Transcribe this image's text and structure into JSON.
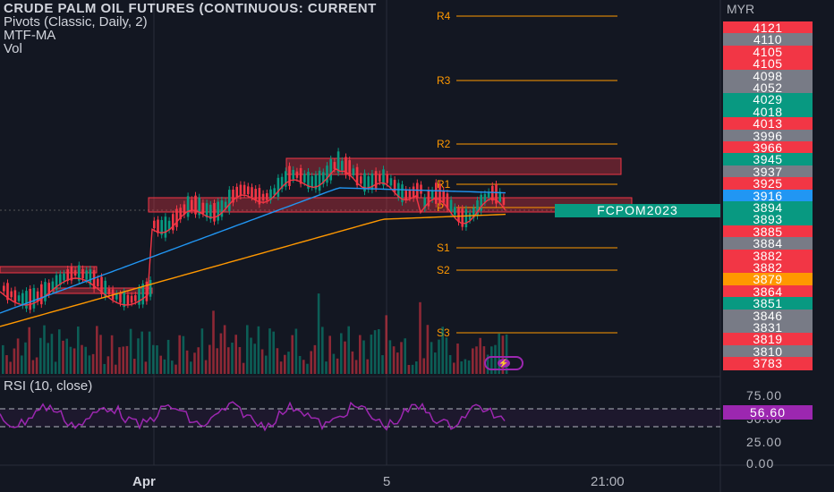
{
  "legend": {
    "title": "CRUDE PALM OIL FUTURES (CONTINUOUS: CURRENT",
    "indicators": [
      "Pivots (Classic, Daily, 2)",
      "MTF-MA",
      "Vol"
    ]
  },
  "currency": "MYR",
  "symbol_tag": "FCPOM2023",
  "price_axis_labels": [
    {
      "text": "4121",
      "color": "#f23645"
    },
    {
      "text": "4110",
      "color": "#787b86"
    },
    {
      "text": "4105",
      "color": "#f23645"
    },
    {
      "text": "4105",
      "color": "#f23645"
    },
    {
      "text": "4098",
      "color": "#787b86"
    },
    {
      "text": "4052",
      "color": "#787b86"
    },
    {
      "text": "4029",
      "color": "#089981"
    },
    {
      "text": "4018",
      "color": "#089981"
    },
    {
      "text": "4013",
      "color": "#f23645"
    },
    {
      "text": "3996",
      "color": "#787b86"
    },
    {
      "text": "3966",
      "color": "#f23645"
    },
    {
      "text": "3945",
      "color": "#089981"
    },
    {
      "text": "3937",
      "color": "#787b86"
    },
    {
      "text": "3925",
      "color": "#f23645"
    },
    {
      "text": "3916",
      "color": "#2196f3"
    },
    {
      "text": "3894",
      "color": "#089981"
    },
    {
      "text": "3893",
      "color": "#089981"
    },
    {
      "text": "3885",
      "color": "#f23645"
    },
    {
      "text": "3884",
      "color": "#787b86"
    },
    {
      "text": "3882",
      "color": "#f23645"
    },
    {
      "text": "3882",
      "color": "#f23645"
    },
    {
      "text": "3879",
      "color": "#ff9800"
    },
    {
      "text": "3864",
      "color": "#f23645"
    },
    {
      "text": "3851",
      "color": "#089981"
    },
    {
      "text": "3846",
      "color": "#787b86"
    },
    {
      "text": "3831",
      "color": "#787b86"
    },
    {
      "text": "3819",
      "color": "#f23645"
    },
    {
      "text": "3810",
      "color": "#787b86"
    },
    {
      "text": "3783",
      "color": "#f23645"
    }
  ],
  "pivots": [
    "R4",
    "R3",
    "R2",
    "R1",
    "P",
    "S1",
    "S2",
    "S3"
  ],
  "rsi": {
    "legend": "RSI (10, close)",
    "value": "56.60",
    "ticks": [
      "75.00",
      "50.00",
      "25.00",
      "0.00"
    ],
    "color": "#9c27b0"
  },
  "time_axis": [
    {
      "text": "Apr",
      "bold": true
    },
    {
      "text": "5",
      "bold": false
    },
    {
      "text": "21:00",
      "bold": false
    }
  ],
  "colors": {
    "up": "#089981",
    "down": "#f23645",
    "ma_fast": "#f23645",
    "ma_mid": "#2196f3",
    "ma_slow": "#ff9800",
    "pivot": "#ff9800"
  },
  "icons": {
    "flash": "lightning-icon"
  }
}
